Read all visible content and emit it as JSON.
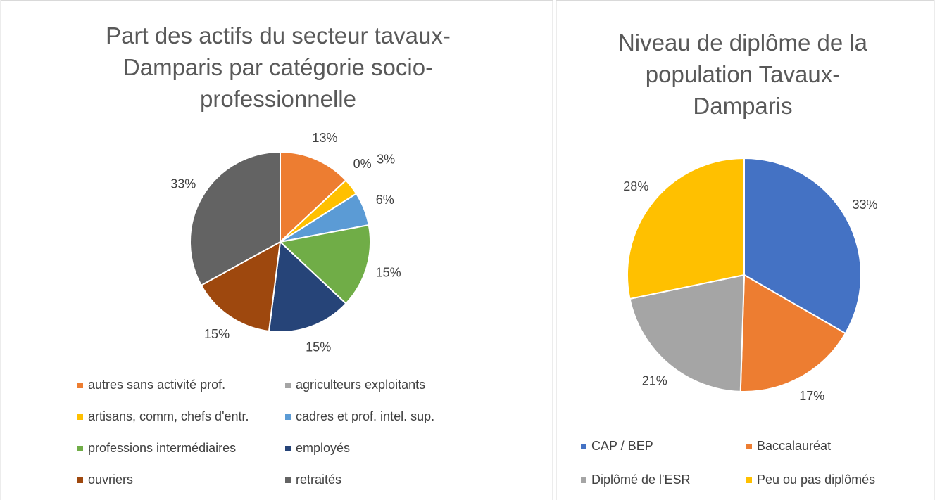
{
  "chart_data": [
    {
      "type": "pie",
      "title": "Part des actifs du secteur tavaux-Damparis par catégorie socio-professionnelle",
      "categories": [
        "autres sans activité prof.",
        "agriculteurs exploitants",
        "artisans, comm, chefs d'entr.",
        "cadres et prof. intel. sup.",
        "professions intermédiaires",
        "employés",
        "ouvriers",
        "retraités"
      ],
      "values": [
        13,
        0,
        3,
        6,
        15,
        15,
        15,
        33
      ],
      "value_labels": [
        "13%",
        "0%",
        "3%",
        "6%",
        "15%",
        "15%",
        "15%",
        "33%"
      ],
      "colors": [
        "#ED7D31",
        "#A5A5A5",
        "#FFC000",
        "#5B9BD5",
        "#70AD47",
        "#264478",
        "#9E480E",
        "#636363"
      ],
      "legend": "bottom"
    },
    {
      "type": "pie",
      "title": "Niveau de diplôme de la population Tavaux-Damparis",
      "categories": [
        "CAP / BEP",
        "Baccalauréat",
        "Diplômé de l'ESR",
        "Peu ou pas diplômés"
      ],
      "values": [
        33,
        17,
        21,
        28
      ],
      "value_labels": [
        "33%",
        "17%",
        "21%",
        "28%"
      ],
      "colors": [
        "#4472C4",
        "#ED7D31",
        "#A5A5A5",
        "#FFC000"
      ],
      "legend": "bottom"
    }
  ]
}
